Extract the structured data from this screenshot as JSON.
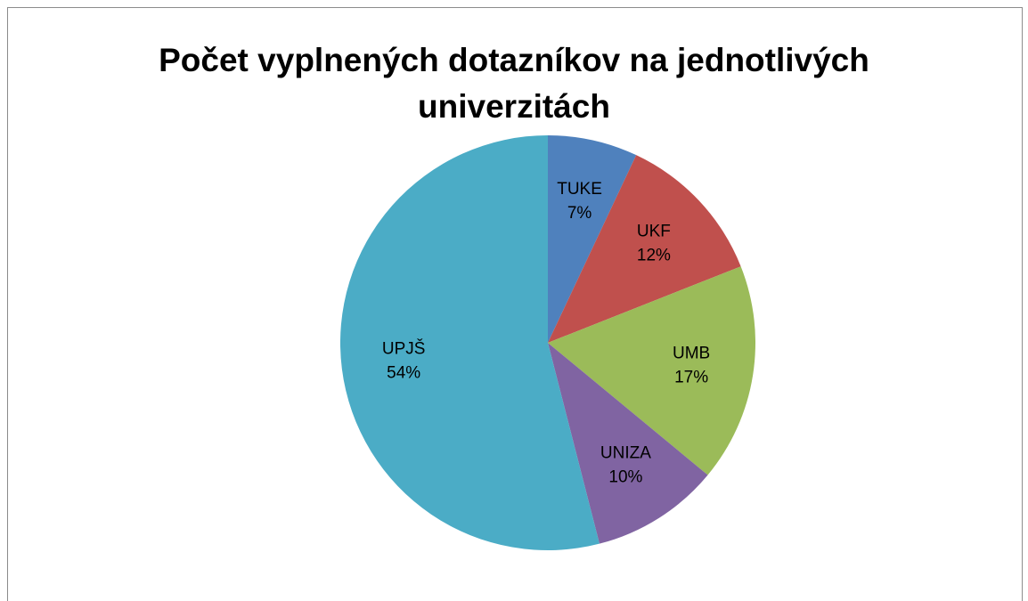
{
  "chart_data": {
    "type": "pie",
    "title": "Počet vyplnených dotazníkov na jednotlivých univerzitách",
    "categories": [
      "TUKE",
      "UKF",
      "UMB",
      "UNIZA",
      "UPJŠ"
    ],
    "values": [
      7,
      12,
      17,
      10,
      54
    ],
    "value_labels": [
      "7%",
      "12%",
      "17%",
      "10%",
      "54%"
    ],
    "colors": [
      "#4f81bd",
      "#c0504d",
      "#9bbb59",
      "#8064a2",
      "#4bacc6"
    ]
  }
}
